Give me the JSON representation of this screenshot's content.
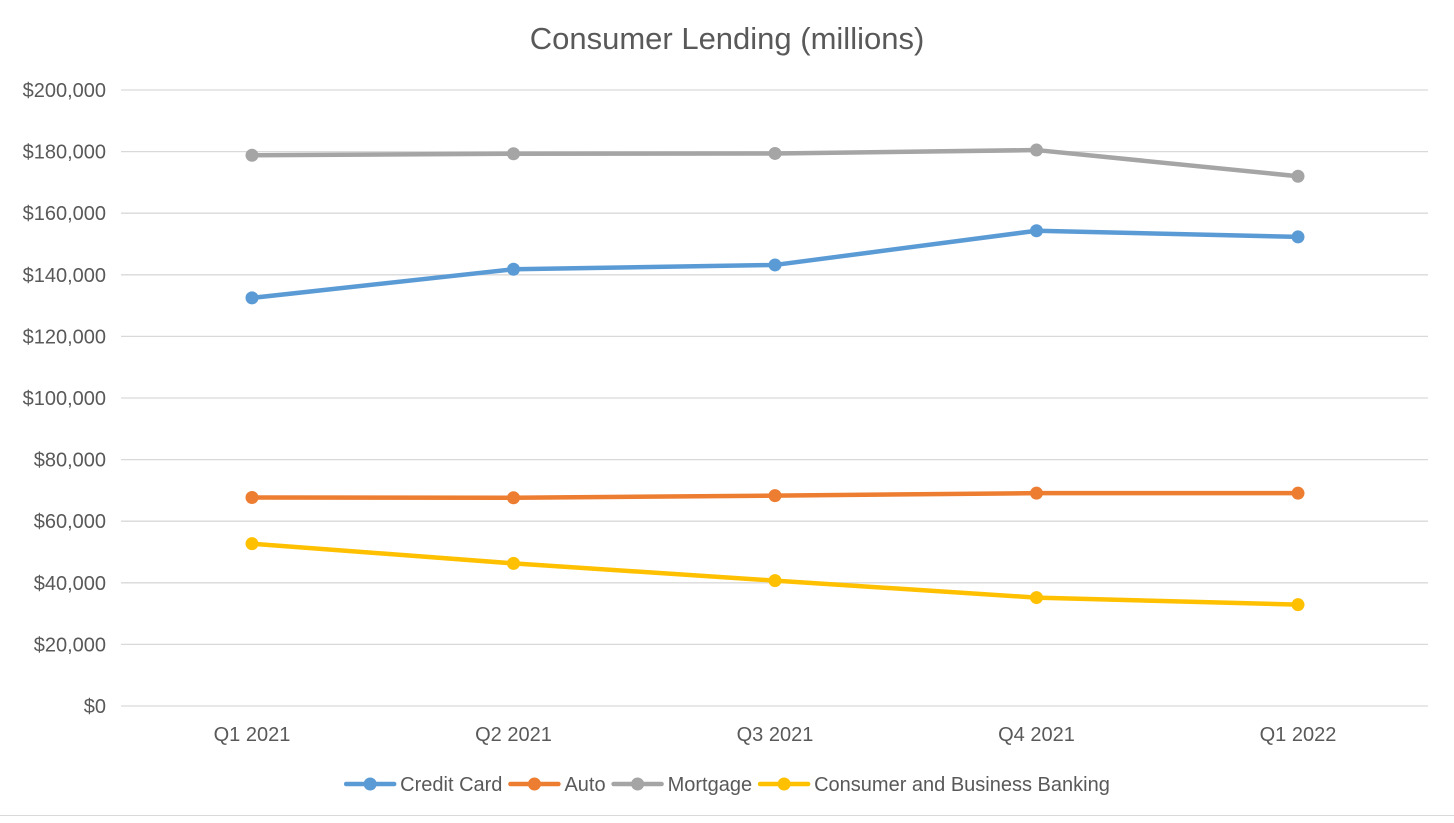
{
  "chart_data": {
    "type": "line",
    "title": "Consumer Lending (millions)",
    "xlabel": "",
    "ylabel": "",
    "categories": [
      "Q1 2021",
      "Q2 2021",
      "Q3 2021",
      "Q4 2021",
      "Q1 2022"
    ],
    "ylim": [
      0,
      200000
    ],
    "yticks": [
      0,
      20000,
      40000,
      60000,
      80000,
      100000,
      120000,
      140000,
      160000,
      180000,
      200000
    ],
    "ytick_labels": [
      "$0",
      "$20,000",
      "$40,000",
      "$60,000",
      "$80,000",
      "$100,000",
      "$120,000",
      "$140,000",
      "$160,000",
      "$180,000",
      "$200,000"
    ],
    "grid": true,
    "legend_position": "bottom",
    "series": [
      {
        "name": "Credit Card",
        "color": "#5b9bd5",
        "values": [
          132500,
          141800,
          143200,
          154300,
          152300
        ]
      },
      {
        "name": "Auto",
        "color": "#ed7d31",
        "values": [
          67700,
          67600,
          68300,
          69100,
          69100
        ]
      },
      {
        "name": "Mortgage",
        "color": "#a5a5a5",
        "values": [
          178800,
          179300,
          179400,
          180500,
          172000
        ]
      },
      {
        "name": "Consumer and Business Banking",
        "color": "#ffc000",
        "values": [
          52700,
          46300,
          40700,
          35200,
          32900
        ]
      }
    ]
  }
}
